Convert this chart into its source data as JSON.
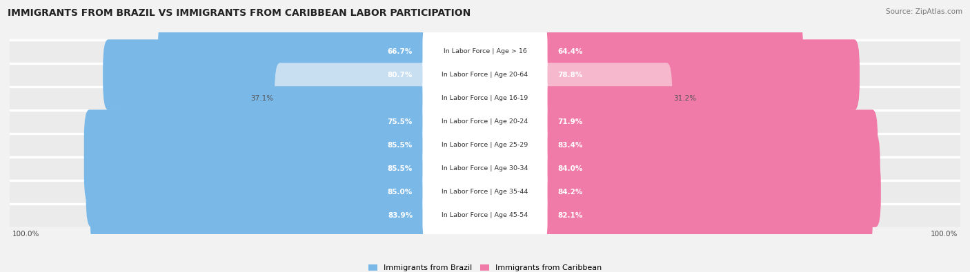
{
  "title": "IMMIGRANTS FROM BRAZIL VS IMMIGRANTS FROM CARIBBEAN LABOR PARTICIPATION",
  "source": "Source: ZipAtlas.com",
  "categories": [
    "In Labor Force | Age > 16",
    "In Labor Force | Age 20-64",
    "In Labor Force | Age 16-19",
    "In Labor Force | Age 20-24",
    "In Labor Force | Age 25-29",
    "In Labor Force | Age 30-34",
    "In Labor Force | Age 35-44",
    "In Labor Force | Age 45-54"
  ],
  "brazil_values": [
    66.7,
    80.7,
    37.1,
    75.5,
    85.5,
    85.5,
    85.0,
    83.9
  ],
  "caribbean_values": [
    64.4,
    78.8,
    31.2,
    71.9,
    83.4,
    84.0,
    84.2,
    82.1
  ],
  "brazil_color_strong": "#7ab8e8",
  "brazil_color_light": "#c8dff2",
  "caribbean_color_strong": "#f07aa8",
  "caribbean_color_light": "#f5b8cc",
  "row_bg": "#ebebeb",
  "row_separator": "#ffffff",
  "bg_color": "#f2f2f2",
  "center_label_bg": "#ffffff",
  "threshold_strong": 50,
  "legend_brazil": "Immigrants from Brazil",
  "legend_caribbean": "Immigrants from Caribbean",
  "label_inside_color": "#ffffff",
  "label_outside_color": "#555555"
}
